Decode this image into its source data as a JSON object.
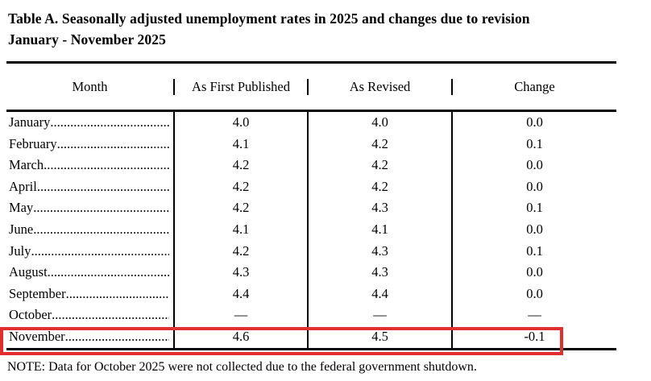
{
  "title": {
    "line1": "Table A. Seasonally adjusted unemployment rates in 2025 and changes due to revision",
    "line2": "January - November 2025"
  },
  "table": {
    "columns": [
      "Month",
      "As First Published",
      "As Revised",
      "Change"
    ],
    "rows": [
      {
        "month": "January",
        "first": "4.0",
        "revised": "4.0",
        "change": "0.0"
      },
      {
        "month": "February",
        "first": "4.1",
        "revised": "4.2",
        "change": "0.1"
      },
      {
        "month": "March",
        "first": "4.2",
        "revised": "4.2",
        "change": "0.0"
      },
      {
        "month": "April",
        "first": "4.2",
        "revised": "4.2",
        "change": "0.0"
      },
      {
        "month": "May",
        "first": "4.2",
        "revised": "4.3",
        "change": "0.1"
      },
      {
        "month": "June",
        "first": "4.1",
        "revised": "4.1",
        "change": "0.0"
      },
      {
        "month": "July",
        "first": "4.2",
        "revised": "4.3",
        "change": "0.1"
      },
      {
        "month": "August",
        "first": "4.3",
        "revised": "4.3",
        "change": "0.0"
      },
      {
        "month": "September",
        "first": "4.4",
        "revised": "4.4",
        "change": "0.0"
      },
      {
        "month": "October",
        "first": "—",
        "revised": "—",
        "change": "—"
      },
      {
        "month": "November",
        "first": "4.6",
        "revised": "4.5",
        "change": "-0.1"
      }
    ]
  },
  "highlight": {
    "row": "November",
    "color": "#e12f2f"
  },
  "note": "NOTE: Data for October 2025 were not collected due to the federal government shutdown."
}
